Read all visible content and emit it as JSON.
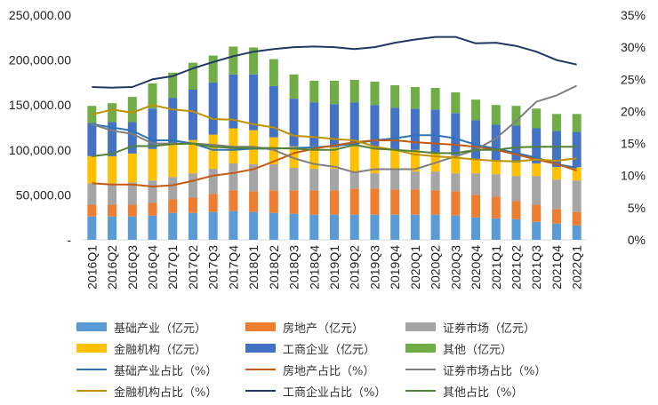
{
  "chart_data": {
    "type": "bar",
    "subtype": "stacked-bar-with-lines",
    "title": "",
    "xlabel": "",
    "ylabel": "",
    "y2label": "",
    "categories": [
      "2016Q1",
      "2016Q2",
      "2016Q3",
      "2016Q4",
      "2017Q1",
      "2017Q2",
      "2017Q3",
      "2017Q4",
      "2018Q1",
      "2018Q2",
      "2018Q3",
      "2018Q4",
      "2019Q1",
      "2019Q2",
      "2019Q3",
      "2019Q4",
      "2020Q1",
      "2020Q2",
      "2020Q3",
      "2020Q4",
      "2021Q1",
      "2021Q2",
      "2021Q3",
      "2021Q4",
      "2022Q1"
    ],
    "ylim": [
      0,
      250000
    ],
    "y2lim": [
      0,
      0.35
    ],
    "yticks": [
      "-",
      "50,000.00",
      "100,000.00",
      "150,000.00",
      "200,000.00",
      "250,000.00"
    ],
    "y2ticks": [
      "0%",
      "5%",
      "10%",
      "15%",
      "20%",
      "25%",
      "30%",
      "35%"
    ],
    "grid": false,
    "legend_position": "bottom",
    "series": [
      {
        "name": "基础产业（亿元）",
        "kind": "bar",
        "color": "#5B9BD5",
        "values": [
          26000,
          26000,
          26000,
          27000,
          30000,
          30000,
          31000,
          32000,
          31000,
          30000,
          29000,
          28000,
          28000,
          28000,
          28000,
          28000,
          28000,
          28000,
          27000,
          25000,
          24000,
          23000,
          20000,
          18000,
          16000
        ]
      },
      {
        "name": "房地产（亿元）",
        "kind": "bar",
        "color": "#ED7D31",
        "values": [
          13000,
          13000,
          13000,
          14000,
          15000,
          17000,
          20000,
          23000,
          23000,
          25000,
          26000,
          27000,
          27000,
          29000,
          29000,
          28000,
          28000,
          27000,
          27000,
          25000,
          24000,
          20000,
          19000,
          16000,
          15000
        ]
      },
      {
        "name": "证券市场（亿元）",
        "kind": "bar",
        "color": "#A5A5A5",
        "values": [
          24000,
          24000,
          25000,
          25000,
          25000,
          27000,
          28000,
          30000,
          30000,
          29000,
          25000,
          24000,
          24000,
          19000,
          17000,
          22000,
          20000,
          21000,
          20000,
          24000,
          25000,
          28000,
          32000,
          33000,
          35000
        ]
      },
      {
        "name": "金融机构（亿元）",
        "kind": "bar",
        "color": "#FFC000",
        "values": [
          30000,
          30000,
          32000,
          35000,
          36000,
          37000,
          38000,
          39000,
          38000,
          30000,
          24000,
          25000,
          24000,
          28000,
          30000,
          22000,
          24000,
          21000,
          20000,
          16000,
          15000,
          15000,
          14000,
          14000,
          15000
        ]
      },
      {
        "name": "工商企业（亿元）",
        "kind": "bar",
        "color": "#4472C4",
        "values": [
          37000,
          38000,
          35000,
          45000,
          52000,
          56000,
          58000,
          60000,
          62000,
          57000,
          53000,
          49000,
          48000,
          49000,
          46000,
          47000,
          46000,
          48000,
          47000,
          43000,
          40000,
          41000,
          39000,
          40000,
          39000
        ]
      },
      {
        "name": "其他（亿元）",
        "kind": "bar",
        "color": "#70AD47",
        "values": [
          19000,
          21000,
          28000,
          28000,
          28000,
          30000,
          30000,
          31000,
          30000,
          30000,
          27000,
          24000,
          26000,
          25000,
          26000,
          25000,
          24000,
          24000,
          23000,
          23000,
          22000,
          22000,
          22000,
          19000,
          20000
        ]
      },
      {
        "name": "基础产业占比（%）",
        "kind": "line",
        "axis": "right",
        "color": "#2E75B6",
        "values": [
          0.18,
          0.175,
          0.17,
          0.155,
          0.155,
          0.15,
          0.14,
          0.14,
          0.142,
          0.142,
          0.143,
          0.144,
          0.146,
          0.15,
          0.155,
          0.158,
          0.163,
          0.163,
          0.158,
          0.148,
          0.142,
          0.135,
          0.128,
          0.118,
          0.112
        ]
      },
      {
        "name": "房地产占比（%）",
        "kind": "line",
        "axis": "right",
        "color": "#C55A11",
        "values": [
          0.088,
          0.086,
          0.086,
          0.083,
          0.085,
          0.092,
          0.1,
          0.104,
          0.11,
          0.122,
          0.135,
          0.142,
          0.147,
          0.152,
          0.155,
          0.155,
          0.152,
          0.15,
          0.148,
          0.145,
          0.14,
          0.133,
          0.125,
          0.118,
          0.108
        ]
      },
      {
        "name": "证券市场占比（%）",
        "kind": "line",
        "axis": "right",
        "color": "#7F7F7F",
        "values": [
          0.18,
          0.17,
          0.165,
          0.15,
          0.15,
          0.15,
          0.148,
          0.145,
          0.145,
          0.14,
          0.127,
          0.118,
          0.114,
          0.105,
          0.11,
          0.11,
          0.11,
          0.12,
          0.13,
          0.14,
          0.158,
          0.185,
          0.215,
          0.225,
          0.24
        ]
      },
      {
        "name": "金融机构占比（%）",
        "kind": "line",
        "axis": "right",
        "color": "#BF9000",
        "values": [
          0.195,
          0.203,
          0.198,
          0.21,
          0.203,
          0.2,
          0.188,
          0.187,
          0.18,
          0.175,
          0.162,
          0.16,
          0.157,
          0.155,
          0.145,
          0.14,
          0.133,
          0.13,
          0.128,
          0.125,
          0.123,
          0.122,
          0.125,
          0.123,
          0.127
        ]
      },
      {
        "name": "工商企业占比（%）",
        "kind": "line",
        "axis": "right",
        "color": "#203864",
        "values": [
          0.238,
          0.237,
          0.238,
          0.25,
          0.255,
          0.267,
          0.277,
          0.286,
          0.293,
          0.297,
          0.3,
          0.301,
          0.3,
          0.297,
          0.3,
          0.307,
          0.312,
          0.316,
          0.316,
          0.306,
          0.307,
          0.302,
          0.293,
          0.28,
          0.273
        ]
      },
      {
        "name": "其他占比（%）",
        "kind": "line",
        "axis": "right",
        "color": "#548235",
        "values": [
          0.13,
          0.134,
          0.146,
          0.146,
          0.149,
          0.15,
          0.145,
          0.143,
          0.143,
          0.143,
          0.142,
          0.14,
          0.14,
          0.148,
          0.142,
          0.14,
          0.138,
          0.135,
          0.135,
          0.14,
          0.14,
          0.144,
          0.145,
          0.145,
          0.145
        ]
      }
    ]
  }
}
